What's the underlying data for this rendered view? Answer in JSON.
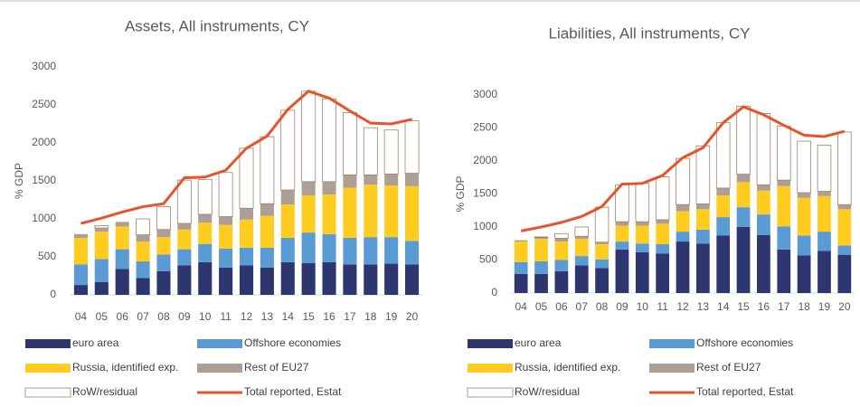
{
  "chart_data": [
    {
      "type": "bar",
      "stacked": true,
      "title": "Assets, All instruments, CY",
      "y_label": "% GDP",
      "categories": [
        "04",
        "05",
        "06",
        "07",
        "08",
        "09",
        "10",
        "11",
        "12",
        "13",
        "14",
        "15",
        "16",
        "17",
        "18",
        "19",
        "20"
      ],
      "ylim": [
        0,
        3000
      ],
      "yticks": [
        0,
        500,
        1000,
        1500,
        2000,
        2500,
        3000
      ],
      "grid": false,
      "series": [
        {
          "name": "euro area",
          "color": "#2e3670",
          "values": [
            130,
            170,
            340,
            220,
            310,
            390,
            430,
            360,
            390,
            360,
            430,
            420,
            430,
            400,
            400,
            410,
            400
          ]
        },
        {
          "name": "Offshore economies",
          "color": "#5b9bd5",
          "values": [
            270,
            300,
            260,
            220,
            220,
            210,
            240,
            250,
            230,
            260,
            320,
            400,
            370,
            350,
            360,
            350,
            310
          ]
        },
        {
          "name": "Russia, identified exp.",
          "color": "#ffcc1f",
          "values": [
            350,
            360,
            300,
            260,
            230,
            260,
            280,
            310,
            370,
            420,
            440,
            490,
            520,
            660,
            690,
            680,
            720
          ]
        },
        {
          "name": "Rest of EU27",
          "color": "#ae9f96",
          "values": [
            50,
            50,
            60,
            90,
            100,
            80,
            110,
            110,
            150,
            160,
            190,
            180,
            170,
            170,
            130,
            150,
            170
          ]
        },
        {
          "name": "RoW/residual",
          "color": "#ffffff",
          "values": [
            0,
            30,
            0,
            210,
            300,
            570,
            460,
            580,
            790,
            880,
            1050,
            1190,
            1090,
            820,
            620,
            580,
            690
          ]
        },
        {
          "name": "Total reported, Estat",
          "type": "line",
          "color": "#e8532a",
          "values": [
            940,
            1010,
            1090,
            1160,
            1200,
            1540,
            1550,
            1640,
            1930,
            2090,
            2440,
            2680,
            2590,
            2420,
            2260,
            2250,
            2310
          ]
        }
      ]
    },
    {
      "type": "bar",
      "stacked": true,
      "title": "Liabilities, All instruments, CY",
      "y_label": "% GDP",
      "categories": [
        "04",
        "05",
        "06",
        "07",
        "08",
        "09",
        "10",
        "11",
        "12",
        "13",
        "14",
        "15",
        "16",
        "17",
        "18",
        "19",
        "20"
      ],
      "ylim": [
        0,
        3000
      ],
      "yticks": [
        0,
        500,
        1000,
        1500,
        2000,
        2500,
        3000
      ],
      "grid": false,
      "series": [
        {
          "name": "euro area",
          "color": "#2e3670",
          "values": [
            290,
            290,
            330,
            420,
            380,
            660,
            620,
            600,
            780,
            750,
            870,
            1000,
            880,
            660,
            570,
            640,
            580
          ]
        },
        {
          "name": "Offshore economies",
          "color": "#5b9bd5",
          "values": [
            180,
            190,
            170,
            140,
            130,
            120,
            130,
            140,
            150,
            210,
            280,
            300,
            310,
            350,
            300,
            290,
            140
          ]
        },
        {
          "name": "Russia, identified exp.",
          "color": "#ffcc1f",
          "values": [
            310,
            340,
            280,
            260,
            230,
            240,
            270,
            310,
            310,
            310,
            330,
            380,
            360,
            610,
            570,
            540,
            550
          ]
        },
        {
          "name": "Rest of EU27",
          "color": "#ae9f96",
          "values": [
            20,
            20,
            50,
            40,
            30,
            60,
            60,
            60,
            100,
            80,
            110,
            120,
            90,
            90,
            80,
            70,
            70
          ]
        },
        {
          "name": "RoW/residual",
          "color": "#ffffff",
          "values": [
            0,
            10,
            70,
            140,
            530,
            560,
            580,
            650,
            700,
            880,
            990,
            1030,
            1080,
            820,
            780,
            700,
            1100
          ]
        },
        {
          "name": "Total reported, Estat",
          "type": "line",
          "color": "#e8532a",
          "values": [
            940,
            1000,
            1070,
            1160,
            1310,
            1650,
            1660,
            1780,
            2050,
            2200,
            2580,
            2820,
            2700,
            2540,
            2390,
            2370,
            2450
          ]
        }
      ]
    }
  ]
}
